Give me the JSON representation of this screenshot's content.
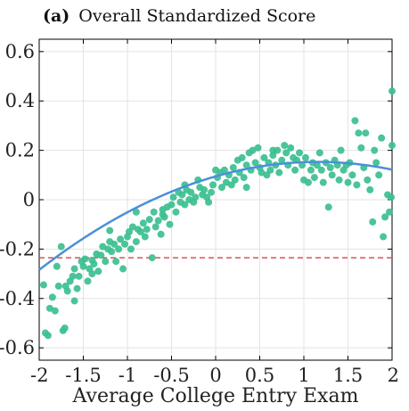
{
  "chart_data": {
    "type": "scatter",
    "title_prefix": "(a)",
    "title": "Overall Standardized Score",
    "xlabel": "Average College Entry Exam",
    "ylabel": "",
    "xlim": [
      -2,
      2
    ],
    "ylim": [
      -0.65,
      0.65
    ],
    "x_ticks": [
      -2,
      -1.5,
      -1,
      -0.5,
      0,
      0.5,
      1,
      1.5,
      2
    ],
    "x_tick_labels": [
      "-2",
      "-1.5",
      "-1",
      "-0.5",
      "0",
      "0.5",
      "1",
      "1.5",
      "2"
    ],
    "y_ticks": [
      -0.6,
      -0.4,
      -0.2,
      0,
      0.2,
      0.4,
      0.6
    ],
    "y_tick_labels": [
      "-0.6",
      "-0.4",
      "-0.2",
      "0",
      "0.2",
      "0.4",
      "0.6"
    ],
    "grid": true,
    "reference_line": {
      "y": -0.235,
      "style": "dashed"
    },
    "fit": {
      "coefficients": [
        0.0944,
        0.1015,
        -0.0439
      ]
    },
    "points": [
      [
        -1.95,
        -0.345
      ],
      [
        -1.93,
        -0.54
      ],
      [
        -1.9,
        -0.55
      ],
      [
        -1.88,
        -0.44
      ],
      [
        -1.85,
        -0.395
      ],
      [
        -1.82,
        -0.45
      ],
      [
        -1.8,
        -0.27
      ],
      [
        -1.78,
        -0.35
      ],
      [
        -1.75,
        -0.19
      ],
      [
        -1.73,
        -0.53
      ],
      [
        -1.71,
        -0.52
      ],
      [
        -1.7,
        -0.35
      ],
      [
        -1.68,
        -0.37
      ],
      [
        -1.65,
        -0.33
      ],
      [
        -1.62,
        -0.31
      ],
      [
        -1.6,
        -0.41
      ],
      [
        -1.57,
        -0.36
      ],
      [
        -1.55,
        -0.31
      ],
      [
        -1.52,
        -0.25
      ],
      [
        -1.5,
        -0.27
      ],
      [
        -1.48,
        -0.24
      ],
      [
        -1.45,
        -0.33
      ],
      [
        -1.43,
        -0.28
      ],
      [
        -1.4,
        -0.245
      ],
      [
        -1.38,
        -0.26
      ],
      [
        -1.35,
        -0.22
      ],
      [
        -1.33,
        -0.29
      ],
      [
        -1.3,
        -0.225
      ],
      [
        -1.28,
        -0.19
      ],
      [
        -1.25,
        -0.25
      ],
      [
        -1.22,
        -0.2
      ],
      [
        -1.2,
        -0.125
      ],
      [
        -1.18,
        -0.21
      ],
      [
        -1.15,
        -0.18
      ],
      [
        -1.13,
        -0.25
      ],
      [
        -1.1,
        -0.2
      ],
      [
        -1.08,
        -0.16
      ],
      [
        -1.05,
        -0.28
      ],
      [
        -1.03,
        -0.18
      ],
      [
        -1,
        -0.15
      ],
      [
        -0.98,
        -0.13
      ],
      [
        -0.96,
        -0.2
      ],
      [
        -0.94,
        -0.11
      ],
      [
        -0.9,
        -0.17
      ],
      [
        -0.88,
        -0.12
      ],
      [
        -0.85,
        -0.13
      ],
      [
        -0.82,
        -0.095
      ],
      [
        -0.8,
        -0.15
      ],
      [
        -0.78,
        -0.12
      ],
      [
        -0.75,
        -0.08
      ],
      [
        -0.72,
        -0.235
      ],
      [
        -0.7,
        -0.05
      ],
      [
        -0.68,
        -0.11
      ],
      [
        -0.65,
        -0.085
      ],
      [
        -0.62,
        -0.14
      ],
      [
        -0.6,
        -0.04
      ],
      [
        -0.58,
        -0.07
      ],
      [
        -0.55,
        -0.03
      ],
      [
        -0.52,
        -0.1
      ],
      [
        -0.5,
        -0.02
      ],
      [
        -0.48,
        0.01
      ],
      [
        -0.45,
        -0.05
      ],
      [
        -0.42,
        0.03
      ],
      [
        -0.4,
        -0.01
      ],
      [
        -0.38,
        0.02
      ],
      [
        -0.35,
        -0.02
      ],
      [
        -0.33,
        0.04
      ],
      [
        -0.3,
        0.0
      ],
      [
        -0.28,
        0.03
      ],
      [
        -0.25,
        -0.01
      ],
      [
        -0.23,
        0.01
      ],
      [
        -0.2,
        0.08
      ],
      [
        -0.18,
        0.05
      ],
      [
        -0.15,
        0.02
      ],
      [
        -0.13,
        0.04
      ],
      [
        -0.1,
        0.01
      ],
      [
        -0.08,
        -0.01
      ],
      [
        -0.05,
        0.03
      ],
      [
        -0.03,
        0.06
      ],
      [
        0,
        0.12
      ],
      [
        0.02,
        0.09
      ],
      [
        0.05,
        0.11
      ],
      [
        0.07,
        0.05
      ],
      [
        0.1,
        0.12
      ],
      [
        0.12,
        0.07
      ],
      [
        0.15,
        0.1
      ],
      [
        0.18,
        0.06
      ],
      [
        0.2,
        0.13
      ],
      [
        0.22,
        0.08
      ],
      [
        0.25,
        0.16
      ],
      [
        0.27,
        0.11
      ],
      [
        0.3,
        0.17
      ],
      [
        0.32,
        0.09
      ],
      [
        0.35,
        0.14
      ],
      [
        0.38,
        0.19
      ],
      [
        0.4,
        0.12
      ],
      [
        0.42,
        0.2
      ],
      [
        0.45,
        0.15
      ],
      [
        0.48,
        0.21
      ],
      [
        0.5,
        0.13
      ],
      [
        0.52,
        0.11
      ],
      [
        0.55,
        0.17
      ],
      [
        0.58,
        0.1
      ],
      [
        0.6,
        0.15
      ],
      [
        0.62,
        0.12
      ],
      [
        0.65,
        0.18
      ],
      [
        0.68,
        0.14
      ],
      [
        0.7,
        0.2
      ],
      [
        0.72,
        0.11
      ],
      [
        0.75,
        0.16
      ],
      [
        0.78,
        0.22
      ],
      [
        0.8,
        0.19
      ],
      [
        0.82,
        0.14
      ],
      [
        0.85,
        0.21
      ],
      [
        0.88,
        0.17
      ],
      [
        0.9,
        0.12
      ],
      [
        0.92,
        0.16
      ],
      [
        0.95,
        0.19
      ],
      [
        0.98,
        0.14
      ],
      [
        1.0,
        0.08
      ],
      [
        1.02,
        0.17
      ],
      [
        1.05,
        0.07
      ],
      [
        1.08,
        0.12
      ],
      [
        1.1,
        0.15
      ],
      [
        1.12,
        0.09
      ],
      [
        1.15,
        0.14
      ],
      [
        1.18,
        0.19
      ],
      [
        1.2,
        0.12
      ],
      [
        1.22,
        0.07
      ],
      [
        1.25,
        0.15
      ],
      [
        1.28,
        -0.03
      ],
      [
        1.3,
        0.13
      ],
      [
        1.32,
        0.1
      ],
      [
        1.35,
        0.16
      ],
      [
        1.38,
        0.14
      ],
      [
        1.4,
        0.08
      ],
      [
        1.42,
        0.2
      ],
      [
        1.45,
        0.12
      ],
      [
        1.48,
        0.14
      ],
      [
        1.5,
        0.07
      ],
      [
        1.52,
        0.15
      ],
      [
        1.55,
        0.1
      ],
      [
        1.58,
        0.32
      ],
      [
        1.6,
        0.06
      ],
      [
        1.62,
        0.27
      ],
      [
        1.65,
        0.21
      ],
      [
        1.68,
        0.13
      ],
      [
        1.7,
        0.27
      ],
      [
        1.72,
        0.08
      ],
      [
        1.75,
        0.04
      ],
      [
        1.78,
        -0.09
      ],
      [
        1.8,
        0.2
      ],
      [
        1.82,
        0.15
      ],
      [
        1.85,
        0.1
      ],
      [
        1.88,
        0.25
      ],
      [
        1.9,
        -0.15
      ],
      [
        1.92,
        -0.07
      ],
      [
        1.95,
        0.02
      ],
      [
        1.97,
        -0.05
      ],
      [
        2.0,
        0.44
      ],
      [
        2.01,
        0.22
      ],
      [
        1.99,
        0.01
      ],
      [
        -1.6,
        -0.28
      ],
      [
        -1.4,
        -0.3
      ],
      [
        -1.2,
        -0.17
      ],
      [
        -0.9,
        -0.05
      ],
      [
        -0.6,
        -0.06
      ],
      [
        -0.35,
        0.06
      ],
      [
        0.35,
        0.05
      ],
      [
        0.65,
        0.2
      ]
    ]
  }
}
